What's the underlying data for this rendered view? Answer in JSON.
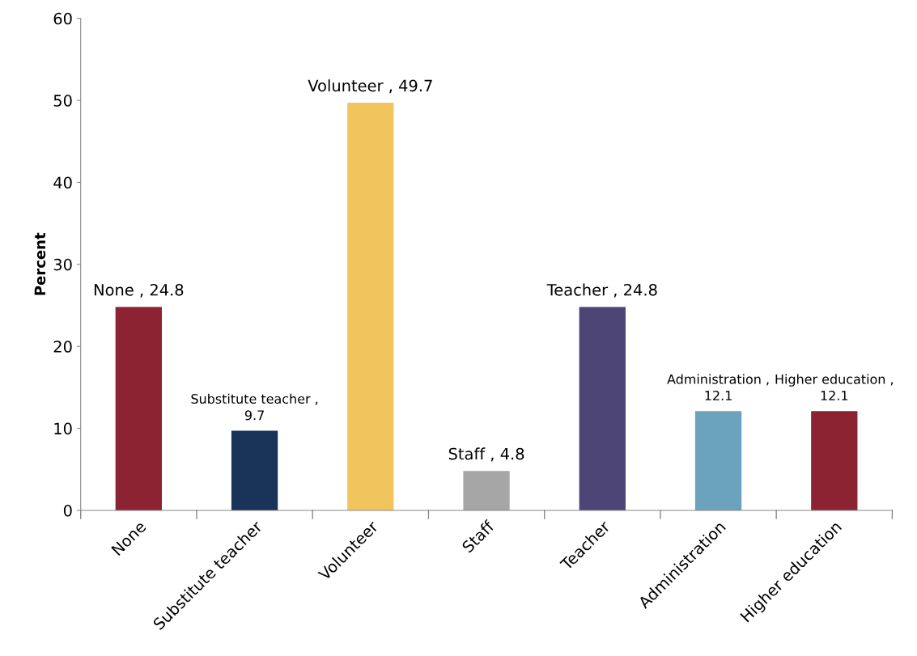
{
  "chart_data": {
    "type": "bar",
    "ylabel": "Percent",
    "categories": [
      "None",
      "Substitute teacher",
      "Volunteer",
      "Staff",
      "Teacher",
      "Administration",
      "Higher education"
    ],
    "values": [
      24.8,
      9.7,
      49.7,
      4.8,
      24.8,
      12.1,
      12.1
    ],
    "colors": [
      "#8b2332",
      "#1a3459",
      "#f2c45e",
      "#a6a6a6",
      "#4e4577",
      "#6aa3bb",
      "#8b2332"
    ],
    "value_labels": [
      "None , 24.8",
      "Substitute teacher , 9.7",
      "Volunteer , 49.7",
      "Staff , 4.8",
      "Teacher , 24.8",
      "Administration , 12.1",
      "Higher education , 12.1"
    ],
    "ylim": [
      0,
      60
    ],
    "yticks": [
      0,
      10,
      20,
      30,
      40,
      50,
      60
    ],
    "grid": false,
    "legend": false
  }
}
